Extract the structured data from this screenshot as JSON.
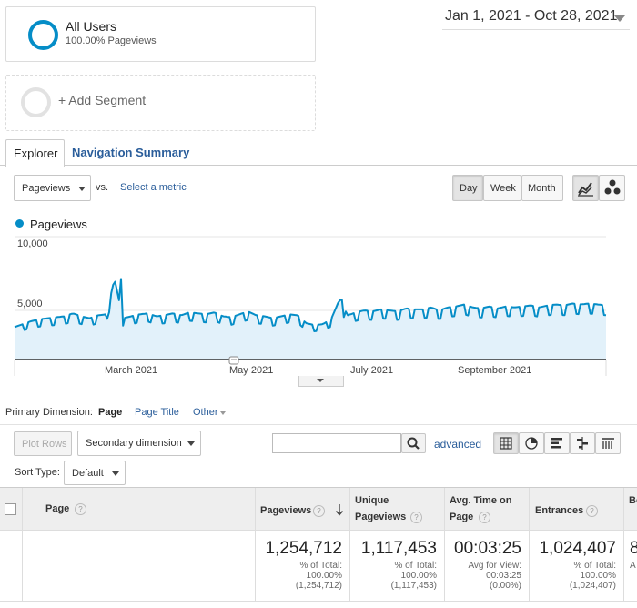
{
  "segments": {
    "all_users": {
      "title": "All Users",
      "subtitle": "100.00% Pageviews"
    },
    "add_label": "+ Add Segment"
  },
  "date_range": "Jan 1, 2021 - Oct 28, 2021",
  "tabs": {
    "explorer": "Explorer",
    "navigation": "Navigation Summary"
  },
  "controls": {
    "metric_select": "Pageviews",
    "vs_label": "vs.",
    "select_metric": "Select a metric",
    "granularity": [
      "Day",
      "Week",
      "Month"
    ],
    "active_granularity": "Day",
    "chart_icons": [
      "line-chart-icon",
      "motion-chart-icon"
    ]
  },
  "chart_data": {
    "type": "area",
    "series": [
      {
        "name": "Pageviews",
        "color": "#058dc7"
      }
    ],
    "ylim": [
      0,
      10000
    ],
    "yticks": [
      "5,000",
      "10,000"
    ],
    "xticks": [
      "March 2021",
      "May 2021",
      "July 2021",
      "September 2021"
    ],
    "x_range": [
      "2021-01-01",
      "2021-10-28"
    ],
    "daily_base": [
      3300,
      3600,
      3900,
      4100,
      4200,
      4300,
      4400,
      4700,
      4400,
      4200,
      4500,
      4600,
      8200,
      4200,
      4400,
      4600,
      4700,
      4400,
      4500,
      4700,
      4500,
      4800,
      4700,
      4600,
      4800,
      4400,
      4300,
      4600,
      4900,
      4500,
      4400,
      4200,
      4400,
      4600,
      4500,
      3700,
      3500,
      3600,
      4100,
      6100,
      4500,
      4800,
      5000,
      4900,
      5100,
      5000,
      4900,
      5200,
      5100,
      5100,
      5300,
      5000,
      5300,
      5400,
      5600,
      5300,
      5200,
      5400,
      5200,
      5400,
      5300,
      5400,
      5500,
      5300,
      5500,
      5600,
      5500,
      5700,
      5600,
      5700,
      5600,
      5500
    ],
    "weekly_dip": 0.18
  },
  "dimension": {
    "label": "Primary Dimension:",
    "options": [
      "Page",
      "Page Title",
      "Other"
    ],
    "active": "Page"
  },
  "toolbar": {
    "plot_rows": "Plot Rows",
    "secondary_dimension": "Secondary dimension",
    "search_placeholder": "",
    "advanced": "advanced",
    "view_icons": [
      "table-view-icon",
      "pie-view-icon",
      "performance-view-icon",
      "comparison-view-icon",
      "pivot-view-icon"
    ]
  },
  "sort": {
    "label": "Sort Type:",
    "value": "Default"
  },
  "table": {
    "headers": [
      {
        "label": "Page"
      },
      {
        "label": "Pageviews",
        "sorted": true
      },
      {
        "label1": "Unique",
        "label2": "Pageviews"
      },
      {
        "label1": "Avg. Time on",
        "label2": "Page"
      },
      {
        "label": "Entrances"
      },
      {
        "label": "Bo"
      }
    ],
    "totals": {
      "pageviews": {
        "value": "1,254,712",
        "l1": "% of Total:",
        "l2": "100.00%",
        "l3": "(1,254,712)"
      },
      "unique": {
        "value": "1,117,453",
        "l1": "% of Total:",
        "l2": "100.00%",
        "l3": "(1,117,453)"
      },
      "avg_time": {
        "value": "00:03:25",
        "l1": "Avg for View:",
        "l2": "00:03:25",
        "l3": "(0.00%)"
      },
      "entrances": {
        "value": "1,024,407",
        "l1": "% of Total:",
        "l2": "100.00%",
        "l3": "(1,024,407)"
      },
      "bounce_partial": {
        "value": "8",
        "l1": "A"
      }
    }
  }
}
